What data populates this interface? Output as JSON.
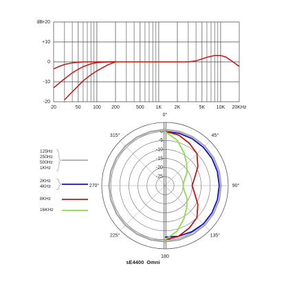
{
  "chart_data": [
    {
      "type": "line",
      "y_label": "dB",
      "x": [
        20,
        25,
        30,
        40,
        50,
        60,
        80,
        100,
        150,
        200,
        300,
        500,
        1000,
        2000,
        3000,
        4000,
        5000,
        6000,
        8000,
        10000,
        12000,
        15000,
        20000
      ],
      "xlim": [
        20,
        20000
      ],
      "log_x": true,
      "xticks": [
        20,
        50,
        100,
        200,
        500,
        {
          "value": 1000,
          "label": "1K"
        },
        {
          "value": 2000,
          "label": "2K"
        },
        {
          "value": 5000,
          "label": "5K"
        },
        {
          "value": 10000,
          "label": "10K"
        },
        {
          "value": 20000,
          "label": "20KHz"
        }
      ],
      "xgrid": [
        30,
        40,
        60,
        70,
        80,
        90,
        300,
        400,
        600,
        700,
        800,
        900,
        3000,
        4000,
        6000,
        7000,
        8000,
        9000
      ],
      "ylim": [
        -20,
        20
      ],
      "yticks": [
        {
          "value": 20,
          "label": "+20"
        },
        {
          "value": 10,
          "label": "+10"
        },
        0,
        -10,
        -20
      ],
      "grid": true,
      "series": [
        {
          "color": "#cc1111",
          "values": [
            -3.5,
            -2.2,
            -1.3,
            -0.5,
            -0.2,
            0,
            0,
            0,
            0,
            0,
            0,
            0,
            0,
            0,
            0,
            0.5,
            1.5,
            2.3,
            3.2,
            3.2,
            2.5,
            0.5,
            -2.3
          ]
        },
        {
          "color": "#cc1111",
          "values": [
            -13,
            -10.5,
            -8.5,
            -5.5,
            -3.7,
            -2.4,
            -1,
            -0.4,
            0,
            0,
            null,
            null,
            null,
            null,
            null,
            null,
            null,
            null,
            null,
            null,
            null,
            null,
            null
          ]
        },
        {
          "color": "#cc1111",
          "values": [
            null,
            null,
            -19,
            -15,
            -12,
            -9.5,
            -6.5,
            -4.5,
            -1.5,
            0,
            null,
            null,
            null,
            null,
            null,
            null,
            null,
            null,
            null,
            null,
            null,
            null,
            null
          ]
        }
      ]
    },
    {
      "type": "polar",
      "theta": [
        0,
        15,
        30,
        45,
        60,
        75,
        90,
        105,
        120,
        135,
        150,
        165,
        180,
        195,
        210,
        225,
        240,
        255,
        270,
        285,
        300,
        315,
        330,
        345,
        360
      ],
      "thetaticks": [
        {
          "value": 0,
          "label": "0°"
        },
        {
          "value": 45,
          "label": "45°"
        },
        {
          "value": 90,
          "label": "90°"
        },
        {
          "value": 135,
          "label": "135°"
        },
        180,
        {
          "value": 225,
          "label": "225°"
        },
        {
          "value": 270,
          "label": "270°"
        },
        {
          "value": 315,
          "label": "315°"
        }
      ],
      "rlim": [
        -30,
        5
      ],
      "rticks": [
        0,
        -5,
        -10,
        -15,
        -20,
        -25
      ],
      "series": [
        {
          "name": "125Hz\n250Hz\n500Hz\n1KHz",
          "color": "#aaaaaa",
          "values": [
            1,
            1,
            1,
            1,
            1,
            1,
            1,
            1,
            1,
            1,
            1,
            1,
            1,
            1,
            1,
            1,
            1,
            1,
            1,
            1,
            1,
            1,
            1,
            1,
            1
          ]
        },
        {
          "name": "2KHz\n4KHz",
          "color": "#1111cc",
          "values": [
            0,
            0,
            0,
            0,
            0,
            0,
            0,
            0,
            0,
            0,
            -0.5,
            -1,
            -1.5,
            null,
            null,
            null,
            null,
            null,
            null,
            null,
            null,
            null,
            null,
            null,
            null
          ]
        },
        {
          "name": "8KHz",
          "color": "#cc1111",
          "values": [
            0,
            -1,
            -3,
            -5,
            -9,
            -13,
            -15,
            -13,
            -9,
            -5,
            -3,
            -1,
            0,
            null,
            null,
            null,
            null,
            null,
            null,
            null,
            null,
            null,
            null,
            null,
            null
          ]
        },
        {
          "name": "16KHz",
          "color": "#88e044",
          "values": [
            0,
            -4,
            -9,
            -13,
            -16,
            -19,
            -20,
            -19,
            -16,
            -13,
            -9,
            -4,
            0,
            null,
            null,
            null,
            null,
            null,
            null,
            null,
            null,
            null,
            null,
            null,
            null
          ]
        }
      ],
      "caption": "sE4400  Omni"
    }
  ]
}
